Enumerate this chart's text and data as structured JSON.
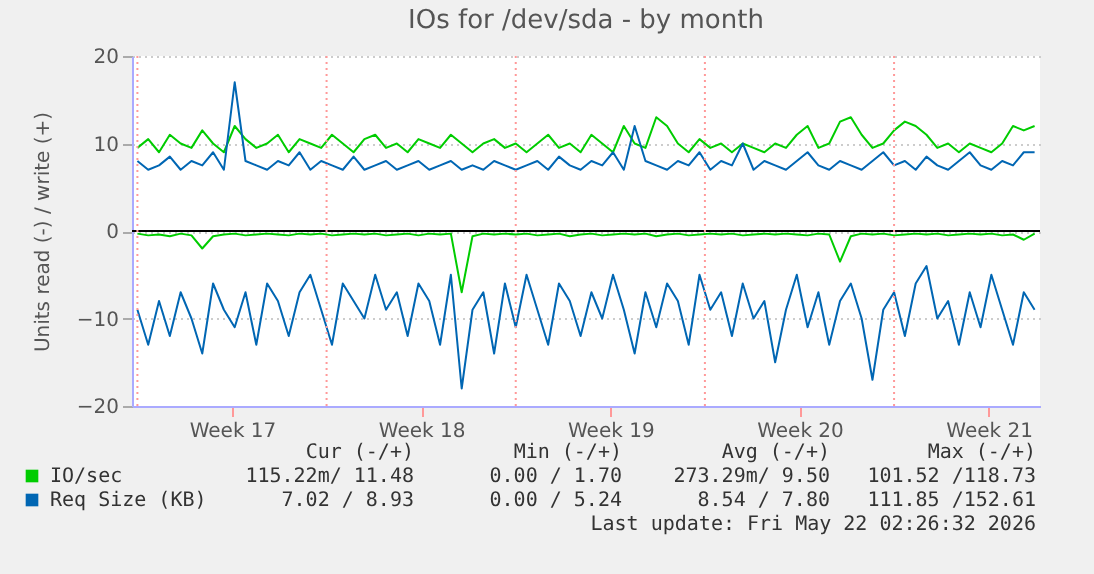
{
  "chart_data": {
    "type": "line",
    "title": "IOs for /dev/sda - by month",
    "ylabel": "Units read (-) / write (+)",
    "x": [
      "2026-04-20T00:00",
      "2026-04-20T09:36",
      "2026-04-20T19:12",
      "2026-04-21T04:48",
      "2026-04-21T14:24",
      "2026-04-22T00:00",
      "2026-04-22T09:36",
      "2026-04-22T19:12",
      "2026-04-23T04:48",
      "2026-04-23T14:24",
      "2026-04-24T00:00",
      "2026-04-24T09:36",
      "2026-04-24T19:12",
      "2026-04-25T04:48",
      "2026-04-25T14:24",
      "2026-04-26T00:00",
      "2026-04-26T09:36",
      "2026-04-26T19:12",
      "2026-04-27T04:48",
      "2026-04-27T14:24",
      "2026-04-28T00:00",
      "2026-04-28T09:36",
      "2026-04-28T19:12",
      "2026-04-29T04:48",
      "2026-04-29T14:24",
      "2026-04-30T00:00",
      "2026-04-30T09:36",
      "2026-04-30T19:12",
      "2026-05-01T04:48",
      "2026-05-01T14:24",
      "2026-05-02T00:00",
      "2026-05-02T09:36",
      "2026-05-02T19:12",
      "2026-05-03T04:48",
      "2026-05-03T14:24",
      "2026-05-04T00:00",
      "2026-05-04T09:36",
      "2026-05-04T19:12",
      "2026-05-05T04:48",
      "2026-05-05T14:24",
      "2026-05-06T00:00",
      "2026-05-06T09:36",
      "2026-05-06T19:12",
      "2026-05-07T04:48",
      "2026-05-07T14:24",
      "2026-05-08T00:00",
      "2026-05-08T09:36",
      "2026-05-08T19:12",
      "2026-05-09T04:48",
      "2026-05-09T14:24",
      "2026-05-10T00:00",
      "2026-05-10T09:36",
      "2026-05-10T19:12",
      "2026-05-11T04:48",
      "2026-05-11T14:24",
      "2026-05-12T00:00",
      "2026-05-12T09:36",
      "2026-05-12T19:12",
      "2026-05-13T04:48",
      "2026-05-13T14:24",
      "2026-05-14T00:00",
      "2026-05-14T09:36",
      "2026-05-14T19:12",
      "2026-05-15T04:48",
      "2026-05-15T14:24",
      "2026-05-16T00:00",
      "2026-05-16T09:36",
      "2026-05-16T19:12",
      "2026-05-17T04:48",
      "2026-05-17T14:24",
      "2026-05-18T00:00",
      "2026-05-18T09:36",
      "2026-05-18T19:12",
      "2026-05-19T04:48",
      "2026-05-19T14:24",
      "2026-05-20T00:00",
      "2026-05-20T09:36",
      "2026-05-20T19:12",
      "2026-05-21T04:48",
      "2026-05-21T14:24",
      "2026-05-22T00:00",
      "2026-05-22T09:36",
      "2026-05-22T19:12",
      "2026-05-23T04:48"
    ],
    "xlim": [
      "2026-04-19T19:12",
      "2026-05-23T09:36"
    ],
    "xticks": [
      {
        "value": "2026-04-23T12:00",
        "label": "Week 17"
      },
      {
        "value": "2026-04-30T12:00",
        "label": "Week 18"
      },
      {
        "value": "2026-05-07T12:00",
        "label": "Week 19"
      },
      {
        "value": "2026-05-14T12:00",
        "label": "Week 20"
      },
      {
        "value": "2026-05-21T12:00",
        "label": "Week 21"
      }
    ],
    "ylim": [
      -20,
      20
    ],
    "yticks": [
      -20,
      -10,
      0,
      10,
      20
    ],
    "series": [
      {
        "name": "IO/sec",
        "color": "#00cc00",
        "values": [
          9.5,
          10.5,
          9,
          11,
          10,
          9.5,
          11.5,
          10,
          9,
          12,
          10.5,
          9.5,
          10,
          11,
          9,
          10.5,
          10,
          9.5,
          11,
          10,
          9,
          10.5,
          11,
          9.5,
          10,
          9,
          10.5,
          10,
          9.5,
          11,
          10,
          9,
          10,
          10.5,
          9.5,
          10,
          9,
          10,
          11,
          9.5,
          10,
          9,
          11,
          10,
          9,
          12,
          10,
          9.5,
          13,
          12,
          10,
          9,
          10.5,
          9.5,
          10,
          9,
          10,
          9.5,
          9,
          10,
          9.5,
          11,
          12,
          9.5,
          10,
          12.5,
          13,
          11,
          9.5,
          10,
          11.5,
          12.5,
          12,
          11,
          9.5,
          10,
          9,
          10,
          9.5,
          9,
          10,
          12,
          11.5,
          12
        ]
      },
      {
        "name": "Req Size (KB)",
        "color": "#0066b3",
        "values": [
          8,
          7,
          7.5,
          8.5,
          7,
          8,
          7.5,
          9,
          7,
          17,
          8,
          7.5,
          7,
          8,
          7.5,
          9,
          7,
          8,
          7.5,
          7,
          8.5,
          7,
          7.5,
          8,
          7,
          7.5,
          8,
          7,
          7.5,
          8,
          7,
          7.5,
          7,
          8,
          7.5,
          7,
          7.5,
          8,
          7,
          8.5,
          7.5,
          7,
          8,
          7.5,
          9,
          7,
          12,
          8,
          7.5,
          7,
          8,
          7.5,
          9,
          7,
          8,
          7.5,
          10,
          7,
          8,
          7.5,
          7,
          8,
          9,
          7.5,
          7,
          8,
          7.5,
          7,
          8,
          9,
          7.5,
          8,
          7,
          8.5,
          7.5,
          7,
          8,
          9,
          7.5,
          7,
          8,
          7.5,
          9,
          9
        ]
      },
      {
        "color": "#00cc00",
        "values": [
          -0.3,
          -0.5,
          -0.4,
          -0.6,
          -0.3,
          -0.5,
          -2,
          -0.6,
          -0.4,
          -0.3,
          -0.5,
          -0.4,
          -0.3,
          -0.4,
          -0.5,
          -0.3,
          -0.4,
          -0.3,
          -0.5,
          -0.4,
          -0.3,
          -0.4,
          -0.3,
          -0.5,
          -0.4,
          -0.3,
          -0.5,
          -0.3,
          -0.4,
          -0.3,
          -7,
          -0.6,
          -0.3,
          -0.4,
          -0.3,
          -0.4,
          -0.3,
          -0.5,
          -0.4,
          -0.3,
          -0.6,
          -0.4,
          -0.3,
          -0.5,
          -0.4,
          -0.3,
          -0.4,
          -0.3,
          -0.6,
          -0.4,
          -0.3,
          -0.5,
          -0.4,
          -0.3,
          -0.4,
          -0.3,
          -0.5,
          -0.4,
          -0.3,
          -0.4,
          -0.3,
          -0.4,
          -0.5,
          -0.3,
          -0.4,
          -3.5,
          -0.6,
          -0.3,
          -0.4,
          -0.3,
          -0.5,
          -0.4,
          -0.3,
          -0.4,
          -0.3,
          -0.5,
          -0.4,
          -0.3,
          -0.4,
          -0.3,
          -0.5,
          -0.4,
          -1,
          -0.3
        ]
      },
      {
        "color": "#0066b3",
        "values": [
          -9,
          -13,
          -8,
          -12,
          -7,
          -10,
          -14,
          -6,
          -9,
          -11,
          -7,
          -13,
          -6,
          -8,
          -12,
          -7,
          -5,
          -9,
          -13,
          -6,
          -8,
          -10,
          -5,
          -9,
          -7,
          -12,
          -6,
          -8,
          -13,
          -5,
          -18,
          -9,
          -7,
          -14,
          -6,
          -11,
          -5,
          -9,
          -13,
          -6,
          -8,
          -12,
          -7,
          -10,
          -5,
          -9,
          -14,
          -7,
          -11,
          -6,
          -8,
          -13,
          -5,
          -9,
          -7,
          -12,
          -6,
          -10,
          -8,
          -15,
          -9,
          -5,
          -11,
          -7,
          -13,
          -8,
          -6,
          -10,
          -17,
          -9,
          -7,
          -12,
          -6,
          -4,
          -10,
          -8,
          -13,
          -7,
          -11,
          -5,
          -9,
          -13,
          -7,
          -9
        ]
      }
    ],
    "ref_lines": [
      {
        "axis": "y",
        "value": 0,
        "color": "#000000",
        "line_style": "solid"
      },
      {
        "axis": "x",
        "value": "2026-04-20T00:00",
        "color": "#ff9999",
        "line_style": "dotted"
      },
      {
        "axis": "x",
        "value": "2026-04-27T00:00",
        "color": "#ff9999",
        "line_style": "dotted"
      },
      {
        "axis": "x",
        "value": "2026-05-04T00:00",
        "color": "#ff9999",
        "line_style": "dotted"
      },
      {
        "axis": "x",
        "value": "2026-05-11T00:00",
        "color": "#ff9999",
        "line_style": "dotted"
      },
      {
        "axis": "x",
        "value": "2026-05-18T00:00",
        "color": "#ff9999",
        "line_style": "dotted"
      }
    ],
    "annotations": [
      "Cur (-/+)",
      "Min (-/+)",
      "Avg (-/+)",
      "Max (-/+)",
      "115.22m/ 11.48",
      "0.00 /  1.70",
      "273.29m/  9.50",
      "101.52 /118.73",
      "7.02 /  8.93",
      "0.00 /  5.24",
      "8.54 /  7.80",
      "111.85 /152.61",
      "Last update: Fri May 22 02:26:32 2026"
    ],
    "grid": "y",
    "legend": "bottom",
    "marker": "none",
    "line_style": "solid"
  }
}
